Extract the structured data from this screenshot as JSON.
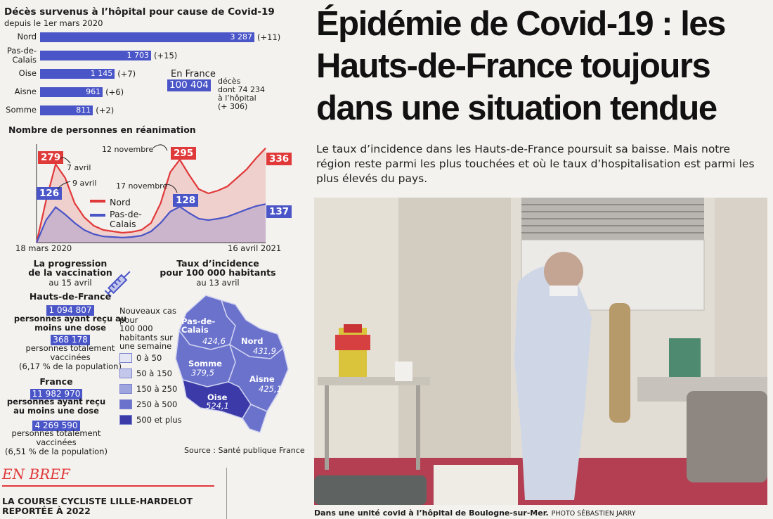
{
  "deaths": {
    "title": "Décès survenus à l’hôpital pour cause de Covid-19",
    "subtitle": "depuis le 1er mars 2020",
    "rows": [
      {
        "label": "Nord",
        "value": "3 287",
        "extra": "(+11)",
        "num": 3287
      },
      {
        "label": "Pas-de-\nCalais",
        "value": "1 703",
        "extra": "(+15)",
        "num": 1703
      },
      {
        "label": "Oise",
        "value": "1 145",
        "extra": "(+7)",
        "num": 1145
      },
      {
        "label": "Aisne",
        "value": "961",
        "extra": "(+6)",
        "num": 961
      },
      {
        "label": "Somme",
        "value": "811",
        "extra": "(+2)",
        "num": 811
      }
    ],
    "france_label": "En France",
    "france_value": "100 404",
    "france_detail": "décès\ndont 74 234\nà l’hôpital\n(+ 306)"
  },
  "chart_data": {
    "type": "area",
    "title": "Nombre de personnes en réanimation",
    "x_start": "18 mars 2020",
    "x_end": "16 avril 2021",
    "series": [
      {
        "name": "Nord",
        "color": "#e0393a",
        "values": [
          0,
          150,
          279,
          230,
          140,
          90,
          60,
          45,
          40,
          35,
          38,
          45,
          70,
          140,
          250,
          295,
          240,
          190,
          175,
          185,
          200,
          230,
          260,
          300,
          336
        ]
      },
      {
        "name": "Pas-de-\nCalais",
        "color": "#4a55c8",
        "values": [
          0,
          80,
          126,
          100,
          70,
          45,
          30,
          22,
          20,
          18,
          20,
          25,
          40,
          70,
          110,
          128,
          105,
          85,
          80,
          85,
          92,
          105,
          118,
          130,
          137
        ]
      }
    ],
    "callouts": [
      {
        "text": "279",
        "color": "#e0393a"
      },
      {
        "text": "126",
        "color": "#4a55c8"
      },
      {
        "text": "295",
        "color": "#e0393a"
      },
      {
        "text": "128",
        "color": "#4a55c8"
      },
      {
        "text": "336",
        "color": "#e0393a"
      },
      {
        "text": "137",
        "color": "#4a55c8"
      }
    ],
    "annotations": [
      "7 avril",
      "9 avril",
      "12 novembre",
      "17 novembre"
    ]
  },
  "vaccination": {
    "title": "La progression\nde la vaccination",
    "date": "au 15 avril",
    "hdf_label": "Hauts-de-France",
    "hdf_one": "1 094 807",
    "hdf_one_text": "personnes ayant reçu\nau moins une dose",
    "hdf_full": "368 178",
    "hdf_full_text": "personnes totalement\nvaccinées\n(6,17 % de la population)",
    "fr_label": "France",
    "fr_one": "11 982 970",
    "fr_one_text": "personnes ayant reçu\nau moins une dose",
    "fr_full": "4 269 590",
    "fr_full_text": "personnes totalement\nvaccinées\n(6,51 % de la population)"
  },
  "incidence": {
    "title": "Taux d’incidence\npour 100 000 habitants",
    "date": "au 13 avril",
    "legend_title": "Nouveaux cas\npour\n100 000\nhabitants sur\nune semaine",
    "legend": [
      {
        "label": "0 à 50",
        "color": "#e4e6f4"
      },
      {
        "label": "50 à 150",
        "color": "#c3c7ea"
      },
      {
        "label": "150 à 250",
        "color": "#9ea4dd"
      },
      {
        "label": "250 à 500",
        "color": "#6b72cc"
      },
      {
        "label": "500 et plus",
        "color": "#3b3aa8"
      }
    ],
    "regions": [
      {
        "name": "Pas-de-\nCalais",
        "value": "424,6"
      },
      {
        "name": "Nord",
        "value": "431,9"
      },
      {
        "name": "Somme",
        "value": "379,5"
      },
      {
        "name": "Aisne",
        "value": "425,1"
      },
      {
        "name": "Oise",
        "value": "524,1"
      }
    ],
    "source": "Source : Santé publique France"
  },
  "brief": {
    "label": "EN BREF",
    "headline": "LA COURSE CYCLISTE LILLE-HARDELOT\nREPORTÉE À 2022"
  },
  "article": {
    "headline": "Épidémie de Covid-19 : les Hauts-de-France toujours dans une situation tendue",
    "lead": "Le taux d’incidence dans les Hauts-de-France poursuit sa baisse. Mais notre région reste parmi les plus touchées et où le taux d’hospitalisation est parmi les plus élevés du pays.",
    "caption": "Dans une unité covid à l’hôpital de Boulogne-sur-Mer.",
    "credit": "PHOTO SÉBASTIEN JARRY"
  }
}
